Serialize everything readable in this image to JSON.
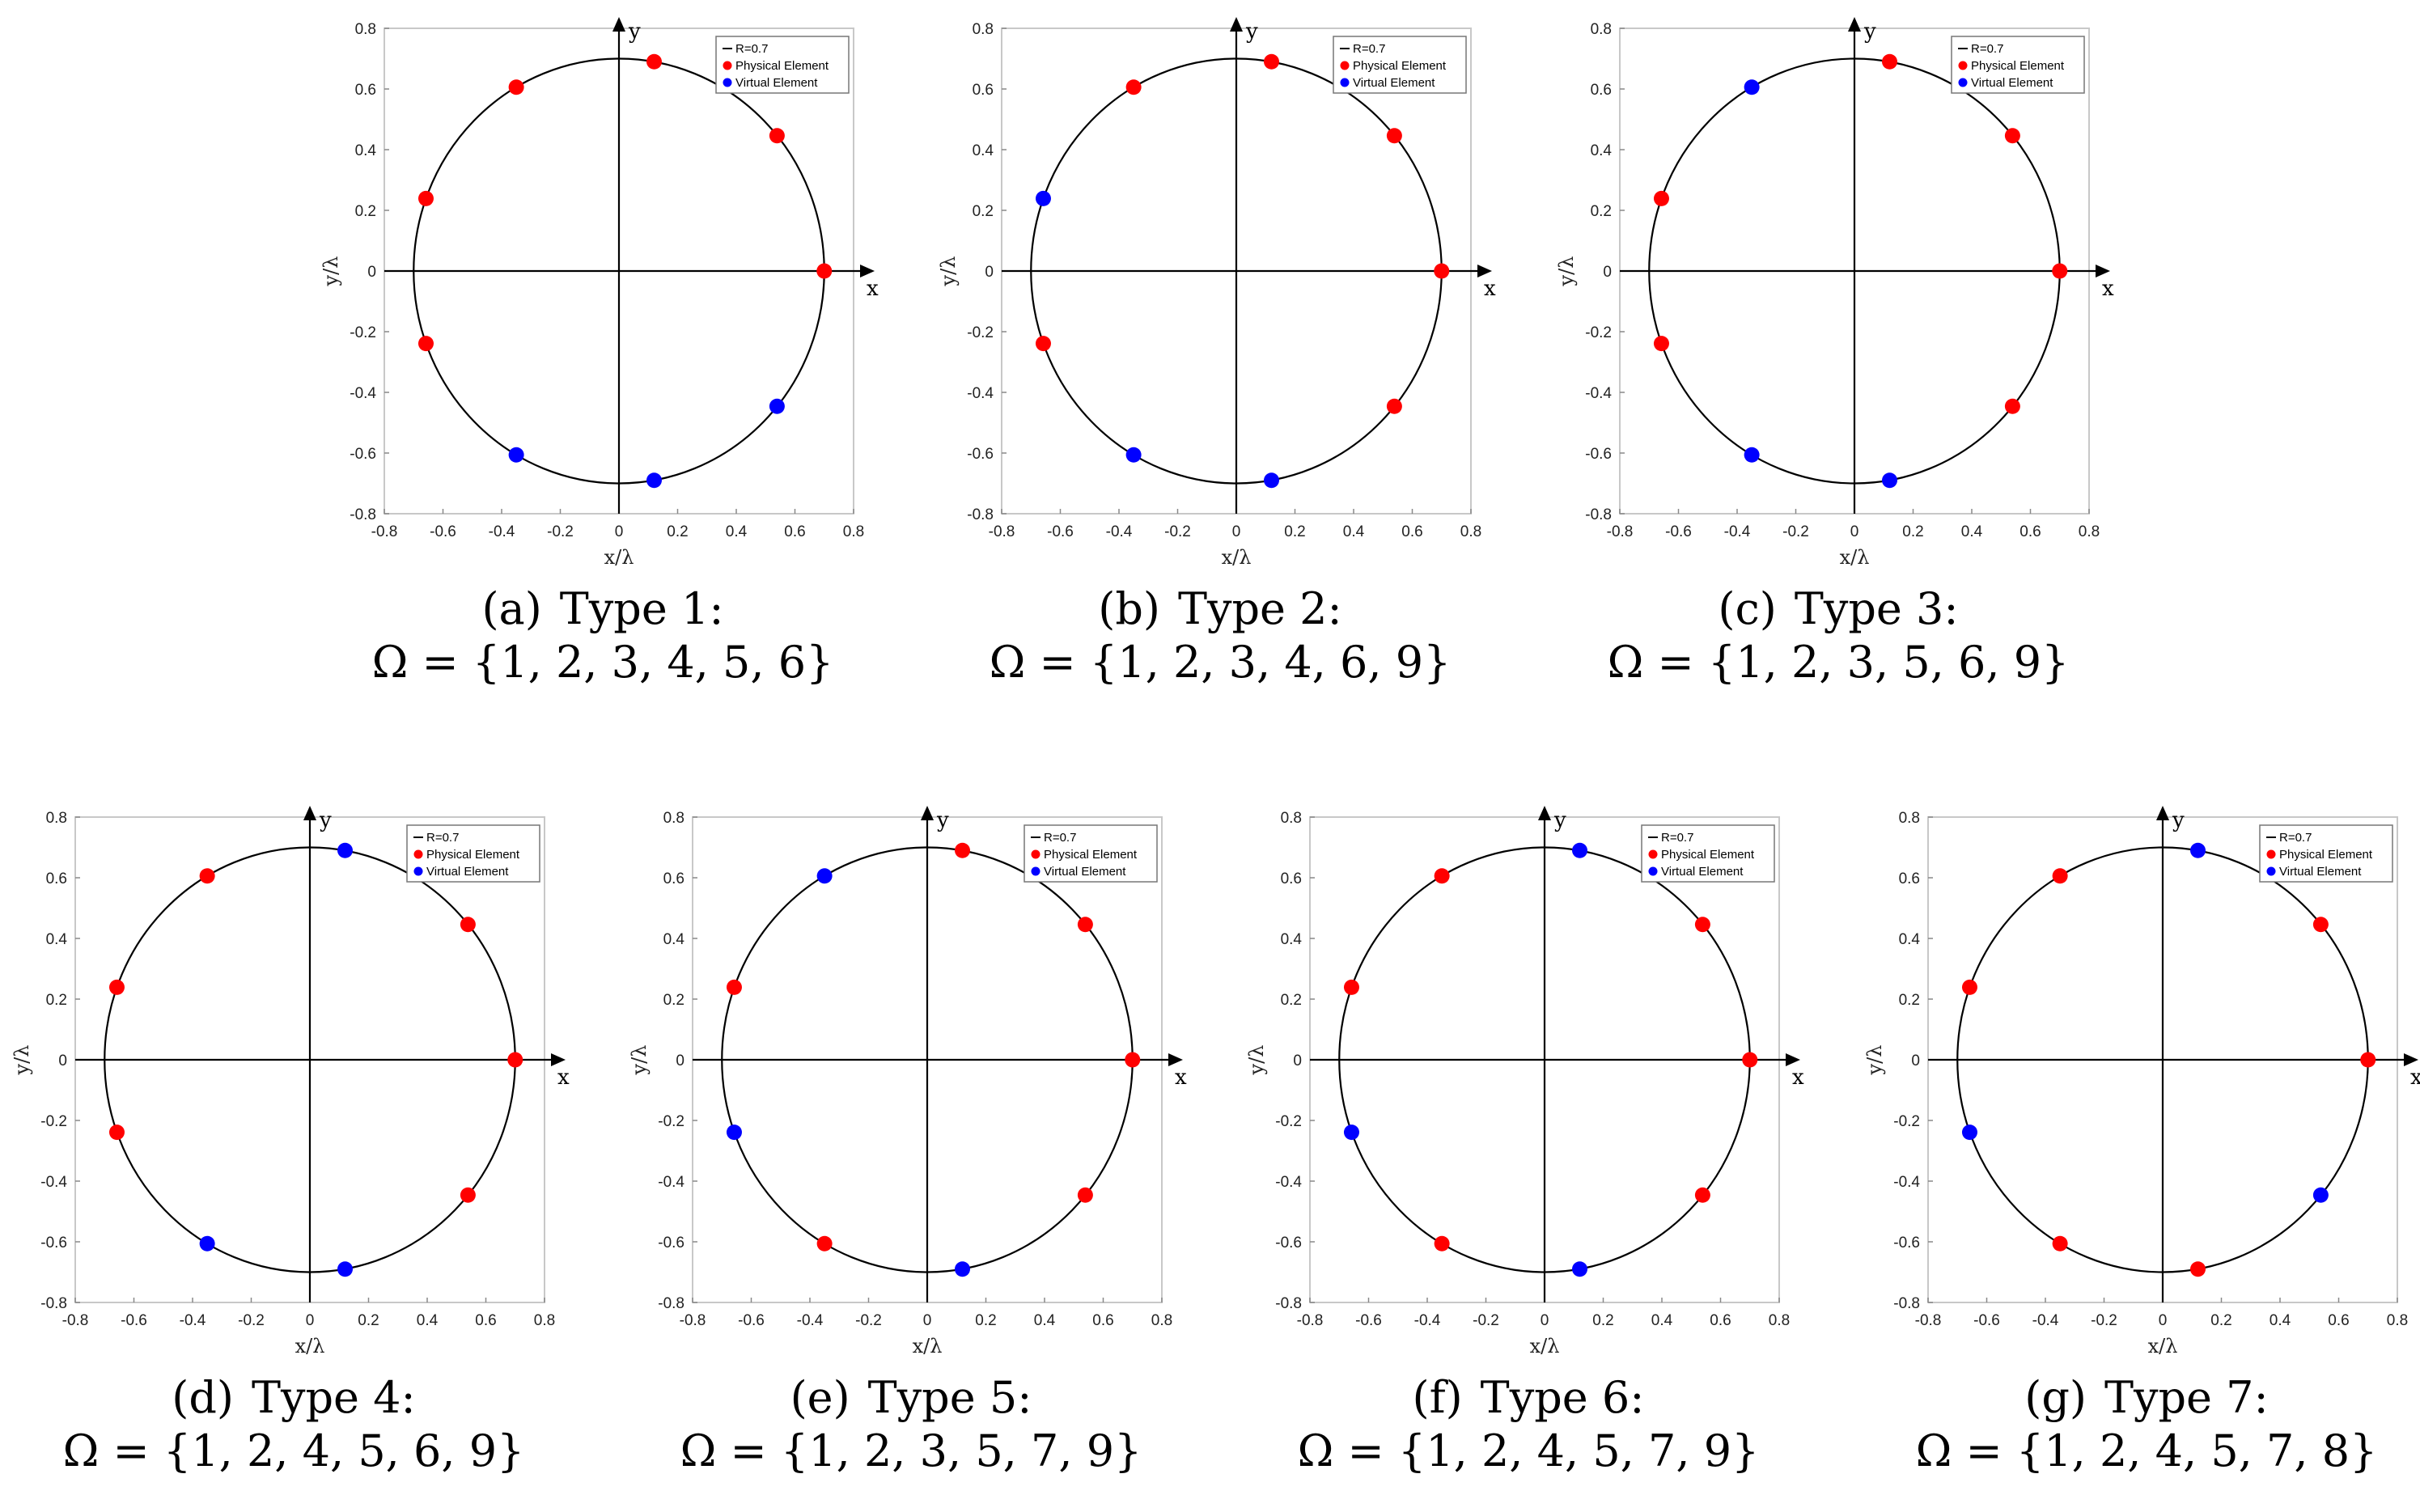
{
  "figure": {
    "legend": {
      "circle": "R=0.7",
      "physical": "Physical Element",
      "virtual": "Virtual Element"
    },
    "colors": {
      "physical": "#ff0000",
      "virtual": "#0000ff",
      "circle": "#000000"
    }
  },
  "chart_data": [
    {
      "type": "scatter",
      "label": "(a)",
      "title": "Type 1:",
      "set": "Ω = {1, 2, 3, 4, 5, 6}",
      "xlabel": "x/λ",
      "ylabel": "y/λ",
      "axis_x": "x",
      "axis_y": "y",
      "xlim": [
        -0.8,
        0.8
      ],
      "ylim": [
        -0.8,
        0.8
      ],
      "xticks": [
        "-0.8",
        "-0.6",
        "-0.4",
        "-0.2",
        "0",
        "0.2",
        "0.4",
        "0.6",
        "0.8"
      ],
      "yticks": [
        "0.8",
        "0.6",
        "0.4",
        "0.2",
        "0",
        "-0.2",
        "-0.4",
        "-0.6",
        "-0.8"
      ],
      "radius": 0.7,
      "legend": [
        "R=0.7",
        "Physical Element",
        "Virtual Element"
      ],
      "points": [
        {
          "x": 0.7,
          "y": 0,
          "kind": "physical"
        },
        {
          "x": 0.539,
          "y": 0.446,
          "kind": "physical"
        },
        {
          "x": 0.12,
          "y": 0.69,
          "kind": "physical"
        },
        {
          "x": -0.35,
          "y": 0.606,
          "kind": "physical"
        },
        {
          "x": -0.658,
          "y": 0.239,
          "kind": "physical"
        },
        {
          "x": -0.658,
          "y": -0.239,
          "kind": "physical"
        },
        {
          "x": -0.35,
          "y": -0.606,
          "kind": "virtual"
        },
        {
          "x": 0.12,
          "y": -0.69,
          "kind": "virtual"
        },
        {
          "x": 0.539,
          "y": -0.446,
          "kind": "virtual"
        }
      ]
    },
    {
      "type": "scatter",
      "label": "(b)",
      "title": "Type 2:",
      "set": "Ω = {1, 2, 3, 4, 6, 9}",
      "xlabel": "x/λ",
      "ylabel": "y/λ",
      "axis_x": "x",
      "axis_y": "y",
      "xlim": [
        -0.8,
        0.8
      ],
      "ylim": [
        -0.8,
        0.8
      ],
      "xticks": [
        "-0.8",
        "-0.6",
        "-0.4",
        "-0.2",
        "0",
        "0.2",
        "0.4",
        "0.6",
        "0.8"
      ],
      "yticks": [
        "0.8",
        "0.6",
        "0.4",
        "0.2",
        "0",
        "-0.2",
        "-0.4",
        "-0.6",
        "-0.8"
      ],
      "radius": 0.7,
      "legend": [
        "R=0.7",
        "Physical Element",
        "Virtual Element"
      ],
      "points": [
        {
          "x": 0.7,
          "y": 0,
          "kind": "physical"
        },
        {
          "x": 0.539,
          "y": 0.446,
          "kind": "physical"
        },
        {
          "x": 0.12,
          "y": 0.69,
          "kind": "physical"
        },
        {
          "x": -0.35,
          "y": 0.606,
          "kind": "physical"
        },
        {
          "x": -0.658,
          "y": 0.239,
          "kind": "virtual"
        },
        {
          "x": -0.658,
          "y": -0.239,
          "kind": "physical"
        },
        {
          "x": -0.35,
          "y": -0.606,
          "kind": "virtual"
        },
        {
          "x": 0.12,
          "y": -0.69,
          "kind": "virtual"
        },
        {
          "x": 0.539,
          "y": -0.446,
          "kind": "physical"
        }
      ]
    },
    {
      "type": "scatter",
      "label": "(c)",
      "title": "Type 3:",
      "set": "Ω = {1, 2, 3, 5, 6, 9}",
      "xlabel": "x/λ",
      "ylabel": "y/λ",
      "axis_x": "x",
      "axis_y": "y",
      "xlim": [
        -0.8,
        0.8
      ],
      "ylim": [
        -0.8,
        0.8
      ],
      "xticks": [
        "-0.8",
        "-0.6",
        "-0.4",
        "-0.2",
        "0",
        "0.2",
        "0.4",
        "0.6",
        "0.8"
      ],
      "yticks": [
        "0.8",
        "0.6",
        "0.4",
        "0.2",
        "0",
        "-0.2",
        "-0.4",
        "-0.6",
        "-0.8"
      ],
      "radius": 0.7,
      "legend": [
        "R=0.7",
        "Physical Element",
        "Virtual Element"
      ],
      "points": [
        {
          "x": 0.7,
          "y": 0,
          "kind": "physical"
        },
        {
          "x": 0.539,
          "y": 0.446,
          "kind": "physical"
        },
        {
          "x": 0.12,
          "y": 0.69,
          "kind": "physical"
        },
        {
          "x": -0.35,
          "y": 0.606,
          "kind": "virtual"
        },
        {
          "x": -0.658,
          "y": 0.239,
          "kind": "physical"
        },
        {
          "x": -0.658,
          "y": -0.239,
          "kind": "physical"
        },
        {
          "x": -0.35,
          "y": -0.606,
          "kind": "virtual"
        },
        {
          "x": 0.12,
          "y": -0.69,
          "kind": "virtual"
        },
        {
          "x": 0.539,
          "y": -0.446,
          "kind": "physical"
        }
      ]
    },
    {
      "type": "scatter",
      "label": "(d)",
      "title": "Type 4:",
      "set": "Ω = {1, 2, 4, 5, 6, 9}",
      "xlabel": "x/λ",
      "ylabel": "y/λ",
      "axis_x": "x",
      "axis_y": "y",
      "xlim": [
        -0.8,
        0.8
      ],
      "ylim": [
        -0.8,
        0.8
      ],
      "xticks": [
        "-0.8",
        "-0.6",
        "-0.4",
        "-0.2",
        "0",
        "0.2",
        "0.4",
        "0.6",
        "0.8"
      ],
      "yticks": [
        "0.8",
        "0.6",
        "0.4",
        "0.2",
        "0",
        "-0.2",
        "-0.4",
        "-0.6",
        "-0.8"
      ],
      "radius": 0.7,
      "legend": [
        "R=0.7",
        "Physical Element",
        "Virtual Element"
      ],
      "points": [
        {
          "x": 0.7,
          "y": 0,
          "kind": "physical"
        },
        {
          "x": 0.539,
          "y": 0.446,
          "kind": "physical"
        },
        {
          "x": 0.12,
          "y": 0.69,
          "kind": "virtual"
        },
        {
          "x": -0.35,
          "y": 0.606,
          "kind": "physical"
        },
        {
          "x": -0.658,
          "y": 0.239,
          "kind": "physical"
        },
        {
          "x": -0.658,
          "y": -0.239,
          "kind": "physical"
        },
        {
          "x": -0.35,
          "y": -0.606,
          "kind": "virtual"
        },
        {
          "x": 0.12,
          "y": -0.69,
          "kind": "virtual"
        },
        {
          "x": 0.539,
          "y": -0.446,
          "kind": "physical"
        }
      ]
    },
    {
      "type": "scatter",
      "label": "(e)",
      "title": "Type 5:",
      "set": "Ω = {1, 2, 3, 5, 7, 9}",
      "xlabel": "x/λ",
      "ylabel": "y/λ",
      "axis_x": "x",
      "axis_y": "y",
      "xlim": [
        -0.8,
        0.8
      ],
      "ylim": [
        -0.8,
        0.8
      ],
      "xticks": [
        "-0.8",
        "-0.6",
        "-0.4",
        "-0.2",
        "0",
        "0.2",
        "0.4",
        "0.6",
        "0.8"
      ],
      "yticks": [
        "0.8",
        "0.6",
        "0.4",
        "0.2",
        "0",
        "-0.2",
        "-0.4",
        "-0.6",
        "-0.8"
      ],
      "radius": 0.7,
      "legend": [
        "R=0.7",
        "Physical Element",
        "Virtual Element"
      ],
      "points": [
        {
          "x": 0.7,
          "y": 0,
          "kind": "physical"
        },
        {
          "x": 0.539,
          "y": 0.446,
          "kind": "physical"
        },
        {
          "x": 0.12,
          "y": 0.69,
          "kind": "physical"
        },
        {
          "x": -0.35,
          "y": 0.606,
          "kind": "virtual"
        },
        {
          "x": -0.658,
          "y": 0.239,
          "kind": "physical"
        },
        {
          "x": -0.658,
          "y": -0.239,
          "kind": "virtual"
        },
        {
          "x": -0.35,
          "y": -0.606,
          "kind": "physical"
        },
        {
          "x": 0.12,
          "y": -0.69,
          "kind": "virtual"
        },
        {
          "x": 0.539,
          "y": -0.446,
          "kind": "physical"
        }
      ]
    },
    {
      "type": "scatter",
      "label": "(f)",
      "title": "Type 6:",
      "set": "Ω = {1, 2, 4, 5, 7, 9}",
      "xlabel": "x/λ",
      "ylabel": "y/λ",
      "axis_x": "x",
      "axis_y": "y",
      "xlim": [
        -0.8,
        0.8
      ],
      "ylim": [
        -0.8,
        0.8
      ],
      "xticks": [
        "-0.8",
        "-0.6",
        "-0.4",
        "-0.2",
        "0",
        "0.2",
        "0.4",
        "0.6",
        "0.8"
      ],
      "yticks": [
        "0.8",
        "0.6",
        "0.4",
        "0.2",
        "0",
        "-0.2",
        "-0.4",
        "-0.6",
        "-0.8"
      ],
      "radius": 0.7,
      "legend": [
        "R=0.7",
        "Physical Element",
        "Virtual Element"
      ],
      "points": [
        {
          "x": 0.7,
          "y": 0,
          "kind": "physical"
        },
        {
          "x": 0.539,
          "y": 0.446,
          "kind": "physical"
        },
        {
          "x": 0.12,
          "y": 0.69,
          "kind": "virtual"
        },
        {
          "x": -0.35,
          "y": 0.606,
          "kind": "physical"
        },
        {
          "x": -0.658,
          "y": 0.239,
          "kind": "physical"
        },
        {
          "x": -0.658,
          "y": -0.239,
          "kind": "virtual"
        },
        {
          "x": -0.35,
          "y": -0.606,
          "kind": "physical"
        },
        {
          "x": 0.12,
          "y": -0.69,
          "kind": "virtual"
        },
        {
          "x": 0.539,
          "y": -0.446,
          "kind": "physical"
        }
      ]
    },
    {
      "type": "scatter",
      "label": "(g)",
      "title": "Type 7:",
      "set": "Ω = {1, 2, 4, 5, 7, 8}",
      "xlabel": "x/λ",
      "ylabel": "y/λ",
      "axis_x": "x",
      "axis_y": "y",
      "xlim": [
        -0.8,
        0.8
      ],
      "ylim": [
        -0.8,
        0.8
      ],
      "xticks": [
        "-0.8",
        "-0.6",
        "-0.4",
        "-0.2",
        "0",
        "0.2",
        "0.4",
        "0.6",
        "0.8"
      ],
      "yticks": [
        "0.8",
        "0.6",
        "0.4",
        "0.2",
        "0",
        "-0.2",
        "-0.4",
        "-0.6",
        "-0.8"
      ],
      "radius": 0.7,
      "legend": [
        "R=0.7",
        "Physical Element",
        "Virtual Element"
      ],
      "points": [
        {
          "x": 0.7,
          "y": 0,
          "kind": "physical"
        },
        {
          "x": 0.539,
          "y": 0.446,
          "kind": "physical"
        },
        {
          "x": 0.12,
          "y": 0.69,
          "kind": "virtual"
        },
        {
          "x": -0.35,
          "y": 0.606,
          "kind": "physical"
        },
        {
          "x": -0.658,
          "y": 0.239,
          "kind": "physical"
        },
        {
          "x": -0.658,
          "y": -0.239,
          "kind": "virtual"
        },
        {
          "x": -0.35,
          "y": -0.606,
          "kind": "physical"
        },
        {
          "x": 0.12,
          "y": -0.69,
          "kind": "physical"
        },
        {
          "x": 0.539,
          "y": -0.446,
          "kind": "virtual"
        }
      ]
    }
  ]
}
